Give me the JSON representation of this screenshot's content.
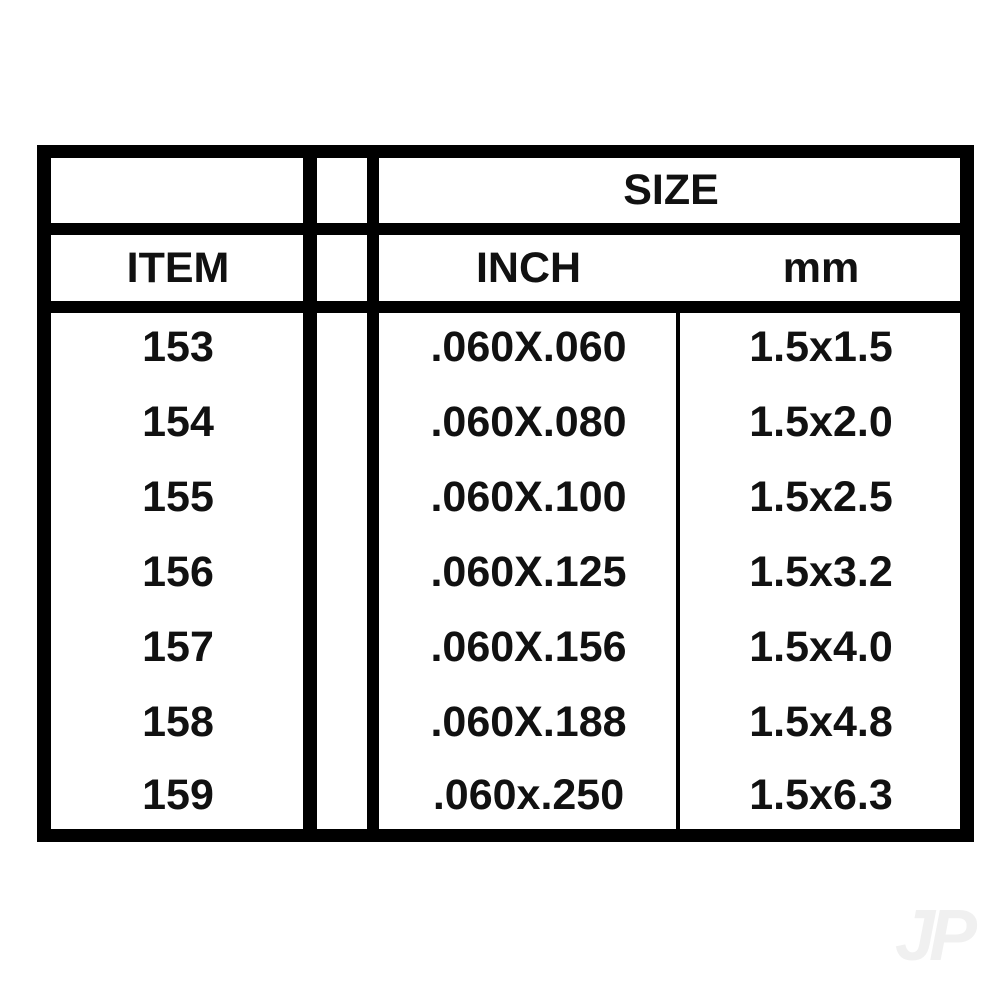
{
  "table": {
    "header_group": "SIZE",
    "columns": [
      "ITEM",
      "INCH",
      "mm"
    ],
    "rows": [
      {
        "item": "153",
        "inch": ".060X.060",
        "mm": "1.5x1.5"
      },
      {
        "item": "154",
        "inch": ".060X.080",
        "mm": "1.5x2.0"
      },
      {
        "item": "155",
        "inch": ".060X.100",
        "mm": "1.5x2.5"
      },
      {
        "item": "156",
        "inch": ".060X.125",
        "mm": "1.5x3.2"
      },
      {
        "item": "157",
        "inch": ".060X.156",
        "mm": "1.5x4.0"
      },
      {
        "item": "158",
        "inch": ".060X.188",
        "mm": "1.5x4.8"
      },
      {
        "item": "159",
        "inch": ".060x.250",
        "mm": "1.5x6.3"
      }
    ]
  },
  "watermark": "JP"
}
